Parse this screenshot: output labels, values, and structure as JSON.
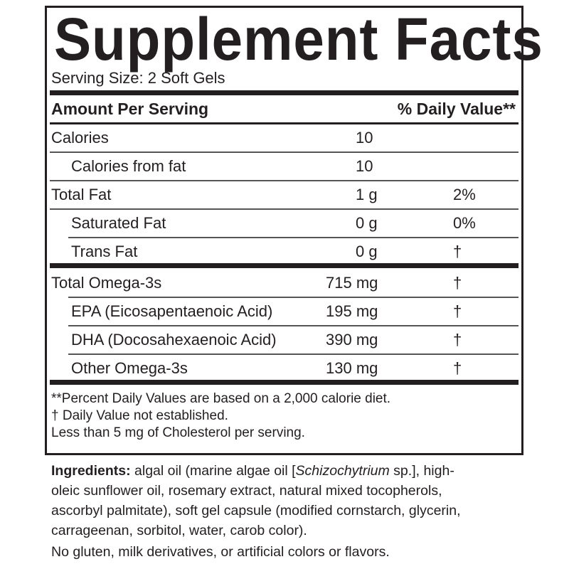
{
  "title": "Supplement Facts",
  "serving_size": "Serving Size: 2 Soft Gels",
  "header": {
    "amount": "Amount Per Serving",
    "dv": "% Daily Value**"
  },
  "rows_top": [
    {
      "label": "Calories",
      "amount": "10",
      "dv": ""
    },
    {
      "label": "Calories from fat",
      "amount": "10",
      "dv": ""
    },
    {
      "label": "Total Fat",
      "amount": "1 g",
      "dv": "2%"
    },
    {
      "label": "Saturated Fat",
      "amount": "0 g",
      "dv": "0%"
    },
    {
      "label": "Trans Fat",
      "amount": "0 g",
      "dv": "†"
    }
  ],
  "rows_omega": [
    {
      "label": "Total Omega-3s",
      "amount": "715 mg",
      "dv": "†"
    },
    {
      "label": "EPA (Eicosapentaenoic Acid)",
      "amount": "195 mg",
      "dv": "†"
    },
    {
      "label": "DHA (Docosahexaenoic Acid)",
      "amount": "390 mg",
      "dv": "†"
    },
    {
      "label": "Other Omega-3s",
      "amount": "130 mg",
      "dv": "†"
    }
  ],
  "footnotes": [
    "**Percent Daily Values are based on a 2,000 calorie diet.",
    "†  Daily Value not established.",
    "Less than 5 mg of Cholesterol per serving."
  ],
  "ingredients": {
    "label": "Ingredients:",
    "line1_a": " algal oil (marine algae oil [",
    "line1_italic": "Schizochytrium",
    "line1_b": " sp.], high-",
    "lines": [
      "oleic sunflower oil, rosemary extract, natural mixed tocopherols,",
      "ascorbyl palmitate), soft gel capsule (modified cornstarch, glycerin,",
      "carrageenan, sorbitol, water, carob color)."
    ]
  },
  "allergen_note": "No gluten, milk derivatives, or artificial colors or flavors."
}
